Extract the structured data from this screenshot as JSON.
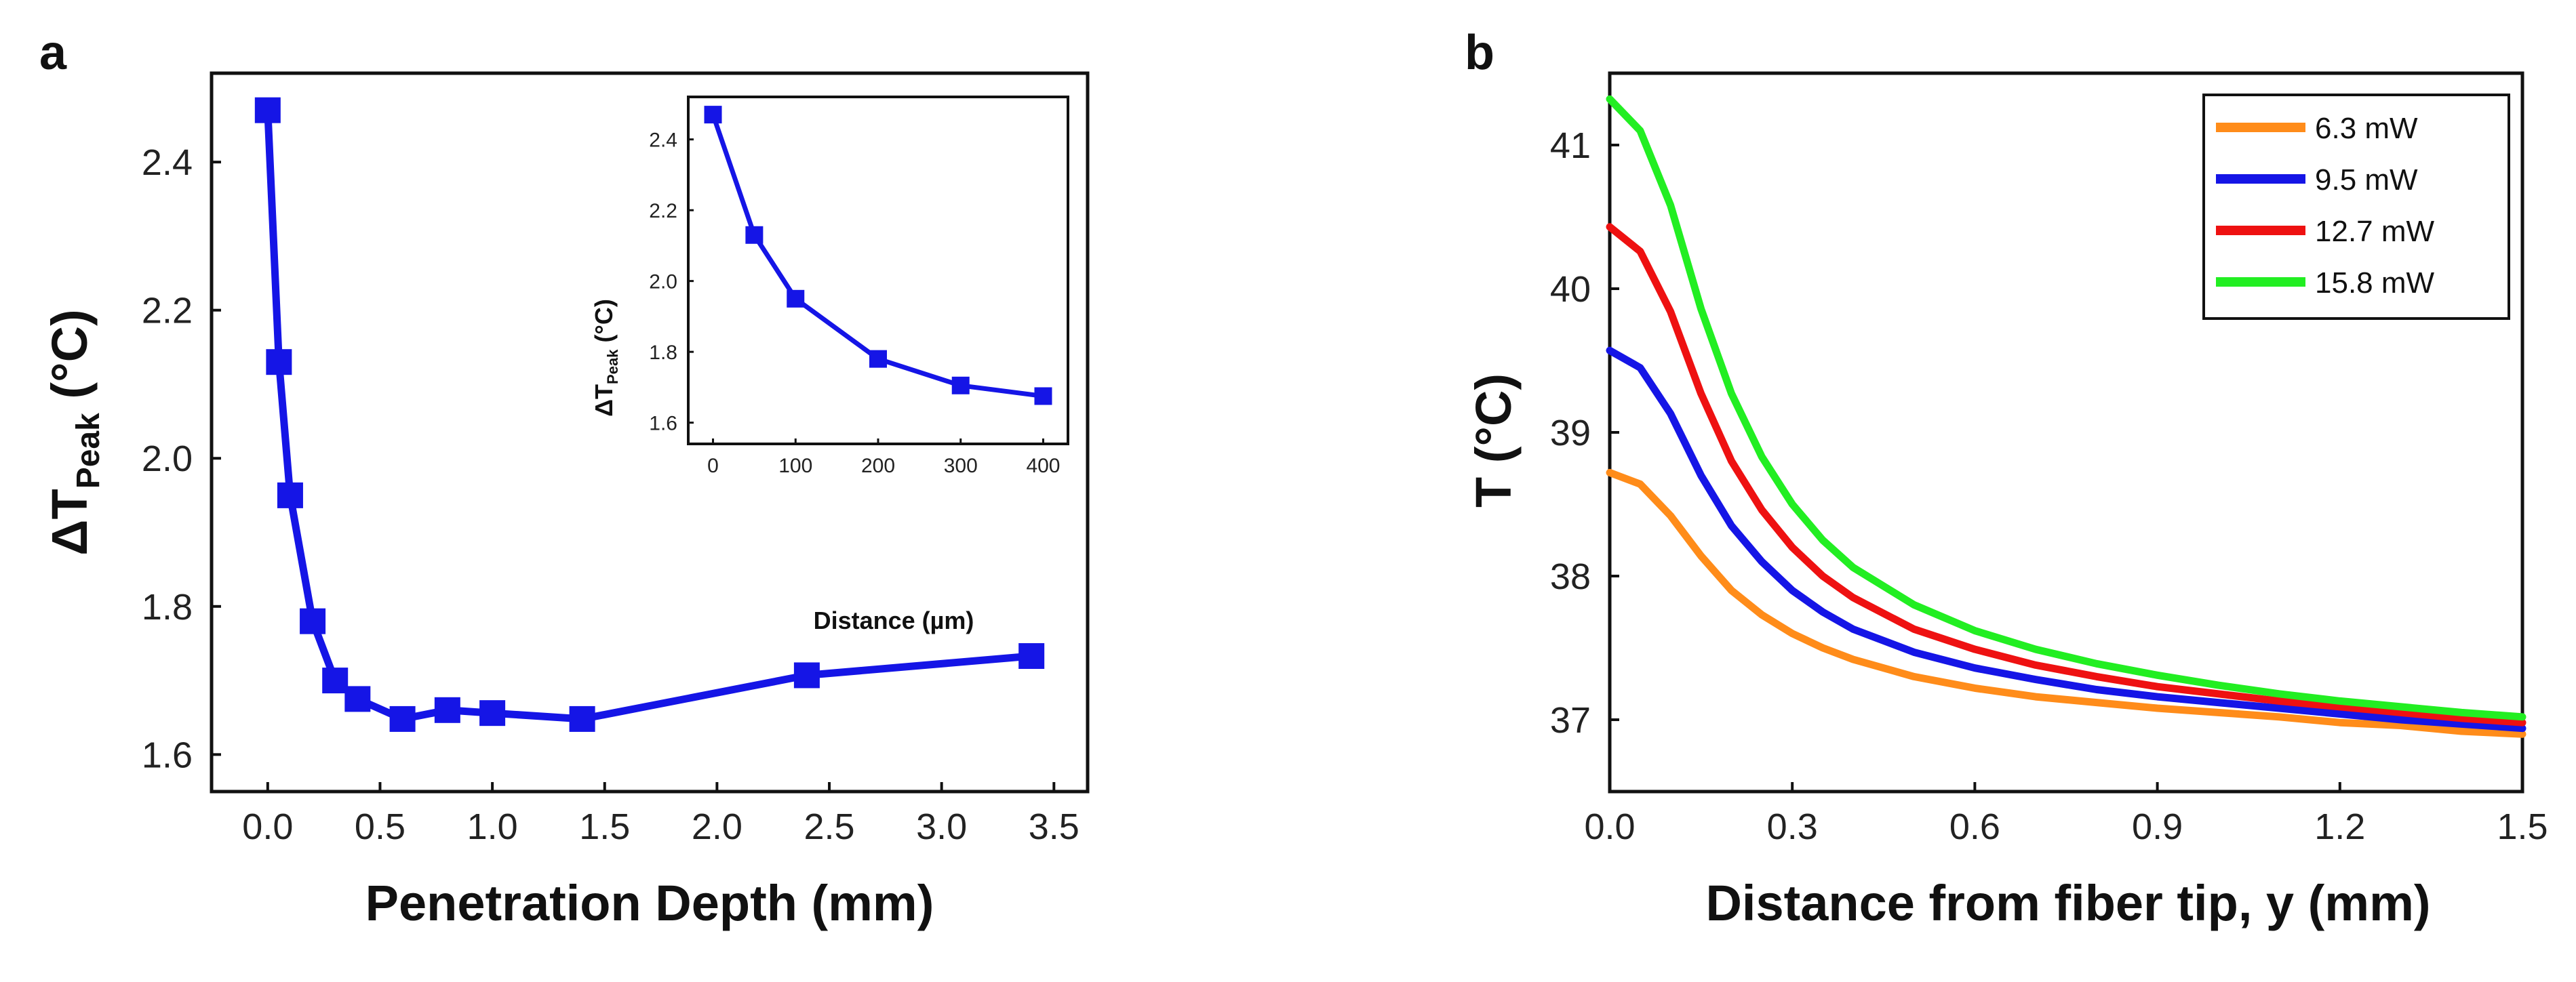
{
  "figure": {
    "panel_labels": [
      "a",
      "b"
    ]
  },
  "chart_data": [
    {
      "id": "a-main",
      "type": "line",
      "xlabel": "Penetration Depth (mm)",
      "ylabel": {
        "prefix": "ΔT",
        "subscript": "Peak",
        "suffix": " (°C)"
      },
      "xlim": [
        -0.25,
        3.65
      ],
      "ylim": [
        1.55,
        2.52
      ],
      "xticks": [
        0.0,
        0.5,
        1.0,
        1.5,
        2.0,
        2.5,
        3.0,
        3.5
      ],
      "xtick_labels": [
        "0.0",
        "0.5",
        "1.0",
        "1.5",
        "2.0",
        "2.5",
        "3.0",
        "3.5"
      ],
      "yticks": [
        1.6,
        1.8,
        2.0,
        2.2,
        2.4
      ],
      "ytick_labels": [
        "1.6",
        "1.8",
        "2.0",
        "2.2",
        "2.4"
      ],
      "color": "#1515e6",
      "marker": "square",
      "series": [
        {
          "name": "ΔT Peak",
          "x": [
            0.0,
            0.05,
            0.1,
            0.2,
            0.3,
            0.4,
            0.6,
            0.8,
            1.0,
            1.4,
            2.4,
            3.4
          ],
          "y": [
            2.47,
            2.13,
            1.95,
            1.78,
            1.7,
            1.675,
            1.648,
            1.66,
            1.656,
            1.648,
            1.707,
            1.733
          ]
        }
      ]
    },
    {
      "id": "a-inset",
      "type": "line",
      "xlabel": "Distance (µm)",
      "ylabel": {
        "prefix": "ΔT",
        "subscript": "Peak",
        "suffix": " (°C)"
      },
      "xlim": [
        -30,
        430
      ],
      "ylim": [
        1.54,
        2.52
      ],
      "xticks": [
        0,
        100,
        200,
        300,
        400
      ],
      "xtick_labels": [
        "0",
        "100",
        "200",
        "300",
        "400"
      ],
      "yticks": [
        1.6,
        1.8,
        2.0,
        2.2,
        2.4
      ],
      "ytick_labels": [
        "1.6",
        "1.8",
        "2.0",
        "2.2",
        "2.4"
      ],
      "color": "#1515e6",
      "marker": "square",
      "series": [
        {
          "name": "ΔT Peak",
          "x": [
            0,
            50,
            100,
            200,
            300,
            400
          ],
          "y": [
            2.47,
            2.13,
            1.95,
            1.78,
            1.705,
            1.675
          ]
        }
      ]
    },
    {
      "id": "b",
      "type": "line",
      "xlabel": "Distance from fiber tip, y (mm)",
      "ylabel": "T (°C)",
      "xlim": [
        0.0,
        1.5
      ],
      "ylim": [
        36.5,
        41.5
      ],
      "xticks": [
        0.0,
        0.3,
        0.6,
        0.9,
        1.2,
        1.5
      ],
      "xtick_labels": [
        "0.0",
        "0.3",
        "0.6",
        "0.9",
        "1.2",
        "1.5"
      ],
      "yticks": [
        37,
        38,
        39,
        40,
        41
      ],
      "ytick_labels": [
        "37",
        "38",
        "39",
        "40",
        "41"
      ],
      "legend_position": "top-right",
      "series": [
        {
          "name": "6.3 mW",
          "color": "#ff8c1a",
          "x": [
            0.0,
            0.05,
            0.1,
            0.15,
            0.2,
            0.25,
            0.3,
            0.35,
            0.4,
            0.5,
            0.6,
            0.7,
            0.8,
            0.9,
            1.0,
            1.1,
            1.2,
            1.3,
            1.4,
            1.5
          ],
          "y": [
            38.72,
            38.64,
            38.42,
            38.14,
            37.9,
            37.73,
            37.6,
            37.5,
            37.42,
            37.3,
            37.22,
            37.16,
            37.12,
            37.08,
            37.05,
            37.02,
            36.98,
            36.96,
            36.92,
            36.9
          ]
        },
        {
          "name": "9.5 mW",
          "color": "#1515e6",
          "x": [
            0.0,
            0.05,
            0.1,
            0.15,
            0.2,
            0.25,
            0.3,
            0.35,
            0.4,
            0.5,
            0.6,
            0.7,
            0.8,
            0.9,
            1.0,
            1.1,
            1.2,
            1.3,
            1.4,
            1.5
          ],
          "y": [
            39.57,
            39.45,
            39.13,
            38.7,
            38.35,
            38.1,
            37.9,
            37.75,
            37.63,
            37.47,
            37.36,
            37.28,
            37.21,
            37.16,
            37.12,
            37.08,
            37.04,
            37.0,
            36.97,
            36.94
          ]
        },
        {
          "name": "12.7 mW",
          "color": "#ee1111",
          "x": [
            0.0,
            0.05,
            0.1,
            0.15,
            0.2,
            0.25,
            0.3,
            0.35,
            0.4,
            0.5,
            0.6,
            0.7,
            0.8,
            0.9,
            1.0,
            1.1,
            1.2,
            1.3,
            1.4,
            1.5
          ],
          "y": [
            40.43,
            40.26,
            39.84,
            39.27,
            38.8,
            38.46,
            38.2,
            38.0,
            37.85,
            37.63,
            37.49,
            37.38,
            37.3,
            37.23,
            37.18,
            37.13,
            37.09,
            37.05,
            37.01,
            36.98
          ]
        },
        {
          "name": "15.8 mW",
          "color": "#22ee22",
          "x": [
            0.0,
            0.05,
            0.1,
            0.15,
            0.2,
            0.25,
            0.3,
            0.35,
            0.4,
            0.5,
            0.6,
            0.7,
            0.8,
            0.9,
            1.0,
            1.1,
            1.2,
            1.3,
            1.4,
            1.5
          ],
          "y": [
            41.32,
            41.1,
            40.58,
            39.86,
            39.27,
            38.83,
            38.5,
            38.25,
            38.06,
            37.8,
            37.62,
            37.49,
            37.39,
            37.31,
            37.24,
            37.18,
            37.13,
            37.09,
            37.05,
            37.02
          ]
        }
      ]
    }
  ]
}
